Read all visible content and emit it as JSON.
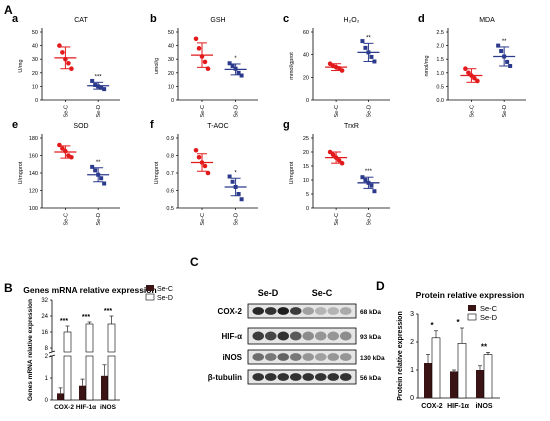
{
  "panel_labels": {
    "A": "A",
    "B": "B",
    "C": "C",
    "D": "D"
  },
  "colors": {
    "se_c": "#e31a1c",
    "se_d": "#2b3a8c",
    "bar_dark": "#3a1414",
    "bar_light": "#ffffff",
    "band": "#2a2a2a"
  },
  "groups": [
    "Se-C",
    "Se-D"
  ],
  "chart_data": [
    {
      "id": "cat",
      "letter": "a",
      "type": "scatter",
      "title": "CAT",
      "ylabel": "U/mg",
      "yticks": [
        "0",
        "10",
        "20",
        "30",
        "40",
        "50"
      ],
      "ylim": [
        0,
        50
      ],
      "series": [
        {
          "name": "Se-C",
          "mean": 31,
          "sd": 8,
          "points": [
            40,
            35,
            30,
            27,
            23
          ]
        },
        {
          "name": "Se-D",
          "mean": 10.5,
          "sd": 2.5,
          "points": [
            14,
            11,
            10,
            9,
            8
          ]
        }
      ],
      "sig": "***"
    },
    {
      "id": "gsh",
      "letter": "b",
      "type": "scatter",
      "title": "GSH",
      "ylabel": "umol/g",
      "yticks": [
        "0",
        "10",
        "20",
        "30",
        "40",
        "50"
      ],
      "ylim": [
        0,
        50
      ],
      "series": [
        {
          "name": "Se-C",
          "mean": 33,
          "sd": 9,
          "points": [
            45,
            38,
            32,
            28,
            23
          ]
        },
        {
          "name": "Se-D",
          "mean": 22.5,
          "sd": 4,
          "points": [
            27,
            25,
            23,
            20,
            18
          ]
        }
      ],
      "sig": "*"
    },
    {
      "id": "h2o2",
      "letter": "c",
      "type": "scatter",
      "title": "H₂O₂",
      "ylabel": "mmol/gprot",
      "yticks": [
        "0",
        "20",
        "40",
        "60"
      ],
      "ylim": [
        0,
        60
      ],
      "series": [
        {
          "name": "Se-C",
          "mean": 29,
          "sd": 3,
          "points": [
            32,
            30,
            29,
            28,
            26
          ]
        },
        {
          "name": "Se-D",
          "mean": 42,
          "sd": 8,
          "points": [
            52,
            46,
            42,
            38,
            34
          ]
        }
      ],
      "sig": "**"
    },
    {
      "id": "mda",
      "letter": "d",
      "type": "scatter",
      "title": "MDA",
      "ylabel": "nmol/mg",
      "yticks": [
        "0.0",
        "0.5",
        "1.0",
        "1.5",
        "2.0",
        "2.5"
      ],
      "ylim": [
        0,
        2.5
      ],
      "series": [
        {
          "name": "Se-C",
          "mean": 0.9,
          "sd": 0.25,
          "points": [
            1.15,
            1.0,
            0.9,
            0.8,
            0.7
          ]
        },
        {
          "name": "Se-D",
          "mean": 1.6,
          "sd": 0.35,
          "points": [
            2.0,
            1.8,
            1.6,
            1.4,
            1.25
          ]
        }
      ],
      "sig": "**"
    },
    {
      "id": "sod",
      "letter": "e",
      "type": "scatter",
      "title": "SOD",
      "ylabel": "U/mgprot",
      "yticks": [
        "100",
        "120",
        "140",
        "160",
        "180"
      ],
      "ylim": [
        100,
        180
      ],
      "series": [
        {
          "name": "Se-C",
          "mean": 164,
          "sd": 7,
          "points": [
            172,
            168,
            165,
            160,
            158
          ]
        },
        {
          "name": "Se-D",
          "mean": 138,
          "sd": 8,
          "points": [
            147,
            143,
            138,
            134,
            128
          ]
        }
      ],
      "sig": "**"
    },
    {
      "id": "taoc",
      "letter": "f",
      "type": "scatter",
      "title": "T-AOC",
      "ylabel": "U/mgprot",
      "yticks": [
        "0.5",
        "0.6",
        "0.7",
        "0.8",
        "0.9"
      ],
      "ylim": [
        0.5,
        0.9
      ],
      "series": [
        {
          "name": "Se-C",
          "mean": 0.76,
          "sd": 0.05,
          "points": [
            0.83,
            0.79,
            0.76,
            0.74,
            0.7
          ]
        },
        {
          "name": "Se-D",
          "mean": 0.62,
          "sd": 0.05,
          "points": [
            0.68,
            0.65,
            0.62,
            0.58,
            0.55
          ]
        }
      ],
      "sig": "*"
    },
    {
      "id": "trxr",
      "letter": "g",
      "type": "scatter",
      "title": "TrxR",
      "ylabel": "U/mgprot",
      "yticks": [
        "0",
        "5",
        "10",
        "15",
        "20",
        "25"
      ],
      "ylim": [
        0,
        25
      ],
      "series": [
        {
          "name": "Se-C",
          "mean": 18,
          "sd": 2,
          "points": [
            20,
            19,
            18,
            17,
            16
          ]
        },
        {
          "name": "Se-D",
          "mean": 9,
          "sd": 2,
          "points": [
            11,
            10,
            9,
            8,
            6
          ]
        }
      ],
      "sig": "***"
    },
    {
      "id": "mrna",
      "letter": "B",
      "type": "bar",
      "title": "Genes mRNA relative expression",
      "ylabel": "Genes mRNA relative expression",
      "categories": [
        "COX-2",
        "HIF-1α",
        "iNOS"
      ],
      "series": [
        {
          "name": "Se-C",
          "values": [
            0.3,
            0.65,
            1.1
          ],
          "errors": [
            0.25,
            0.3,
            0.5
          ]
        },
        {
          "name": "Se-D",
          "values": [
            16,
            20,
            20
          ],
          "errors": [
            3,
            1,
            4
          ]
        }
      ],
      "sig": [
        "***",
        "***",
        "***"
      ],
      "yticks_upper": [
        "8",
        "16",
        "24",
        "32"
      ],
      "yticks_lower": [
        "0",
        "1",
        "2"
      ],
      "axis_break": true
    },
    {
      "id": "wb",
      "letter": "C",
      "type": "table",
      "lanes_label": [
        "Se-D",
        "Se-C"
      ],
      "rows": [
        {
          "protein": "COX-2",
          "kda": "68 kDa",
          "bands": [
            0.95,
            0.9,
            1.0,
            0.85,
            0.35,
            0.25,
            0.25,
            0.3
          ]
        },
        {
          "protein": "HIF-α",
          "kda": "93 kDa",
          "bands": [
            0.85,
            0.8,
            0.9,
            0.7,
            0.45,
            0.4,
            0.4,
            0.45
          ]
        },
        {
          "protein": "iNOS",
          "kda": "130 kDa",
          "bands": [
            0.6,
            0.55,
            0.65,
            0.55,
            0.4,
            0.35,
            0.4,
            0.4
          ]
        },
        {
          "protein": "β-tubulin",
          "kda": "56 kDa",
          "bands": [
            0.9,
            0.9,
            0.9,
            0.9,
            0.9,
            0.9,
            0.9,
            0.9
          ]
        }
      ]
    },
    {
      "id": "protein",
      "letter": "D",
      "type": "bar",
      "title": "Protein relative expression",
      "ylabel": "Protein relative expression",
      "categories": [
        "COX-2",
        "HIF-1α",
        "iNOS"
      ],
      "yticks": [
        "0",
        "1",
        "2",
        "3"
      ],
      "ylim": [
        0,
        3
      ],
      "series": [
        {
          "name": "Se-C",
          "values": [
            1.25,
            0.95,
            1.0
          ],
          "errors": [
            0.3,
            0.05,
            0.15
          ]
        },
        {
          "name": "Se-D",
          "values": [
            2.15,
            1.95,
            1.55
          ],
          "errors": [
            0.25,
            0.55,
            0.08
          ]
        }
      ],
      "sig": [
        "*",
        "*",
        "**"
      ]
    }
  ]
}
